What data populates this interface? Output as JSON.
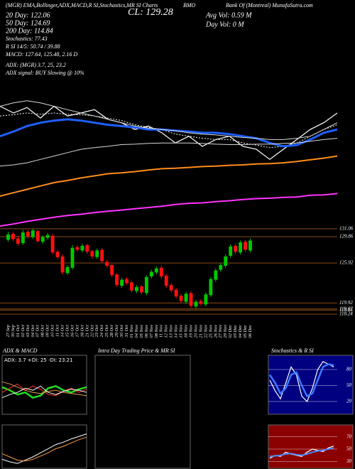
{
  "header": {
    "source": "(MGR) EMA,Bollinger,ADX,MACD,R SI,Stochastics,MR SI Charts",
    "close": "CL: 129.28",
    "symbol": "BMO",
    "company": "Bank Of (Montreal) MunafaSutra.com",
    "avg_vol": "Avg Vol: 0.59 M",
    "day_vol": "Day Vol: 0 M",
    "ema20": "20 Day: 122.06",
    "ema50": "50 Day: 124.69",
    "ema200": "200 Day: 114.84",
    "stochastics": "Stochastics: 77.43",
    "rsi": "R SI 14/5: 50.74 / 39.88",
    "macd": "MACD: 127.64, 125.48, 2.16 D",
    "adx": "ADX: (MGR) 3.7, 25, 23.2",
    "adx_signal": "ADX signal: BUY Slowing @ 10%"
  },
  "chart_data": [
    {
      "type": "candlestick",
      "categories": [
        "27 Sep",
        "30 Sep",
        "01 Oct",
        "02 Oct",
        "03 Oct",
        "04 Oct",
        "07 Oct",
        "08 Oct",
        "09 Oct",
        "10 Oct",
        "11 Oct",
        "14 Oct",
        "15 Oct",
        "16 Oct",
        "17 Oct",
        "18 Oct",
        "21 Oct",
        "22 Oct",
        "23 Oct",
        "24 Oct",
        "25 Oct",
        "28 Oct",
        "29 Oct",
        "30 Oct",
        "31 Oct",
        "01 Nov",
        "04 Nov",
        "05 Nov",
        "06 Nov",
        "07 Nov",
        "08 Nov",
        "11 Nov",
        "12 Nov",
        "13 Nov",
        "14 Nov",
        "15 Nov",
        "18 Nov",
        "19 Nov",
        "20 Nov",
        "21 Nov",
        "22 Nov",
        "25 Nov",
        "26 Nov",
        "27 Nov",
        "29 Nov",
        "02 Dec",
        "03 Dec",
        "04 Dec",
        "05 Dec",
        "06 Dec"
      ],
      "open": [
        129.4,
        130.3,
        129.6,
        128.9,
        130.6,
        129.8,
        130.7,
        129.1,
        129.7,
        130.0,
        127.6,
        126.9,
        124.4,
        125.2,
        128.3,
        127.8,
        128.6,
        127.7,
        126.8,
        127.9,
        126.1,
        125.6,
        124.2,
        122.5,
        123.5,
        123.0,
        121.7,
        122.4,
        121.4,
        123.9,
        124.5,
        125.2,
        124.0,
        122.6,
        121.9,
        121.0,
        120.1,
        121.4,
        119.4,
        120.2,
        119.7,
        121.1,
        123.4,
        124.9,
        125.5,
        127.0,
        128.5,
        127.5,
        129.1,
        127.8
      ],
      "high": [
        130.6,
        130.6,
        130.0,
        130.9,
        130.9,
        131.1,
        130.9,
        130.1,
        130.4,
        130.3,
        127.9,
        127.2,
        125.6,
        128.6,
        128.6,
        128.8,
        128.8,
        127.9,
        128.1,
        128.2,
        126.4,
        125.8,
        124.4,
        123.7,
        123.8,
        123.3,
        122.6,
        122.6,
        124.1,
        124.9,
        125.4,
        125.5,
        124.3,
        122.9,
        122.2,
        121.3,
        121.6,
        121.7,
        120.4,
        120.5,
        121.5,
        123.8,
        125.1,
        125.9,
        127.2,
        128.7,
        128.8,
        129.3,
        129.4,
        129.6
      ],
      "low": [
        129.1,
        129.2,
        128.5,
        128.6,
        129.6,
        129.5,
        129.0,
        128.8,
        129.4,
        127.2,
        126.5,
        124.2,
        124.1,
        124.9,
        127.6,
        127.5,
        127.3,
        126.6,
        126.5,
        125.9,
        125.2,
        123.8,
        122.3,
        122.2,
        122.6,
        121.5,
        121.4,
        121.2,
        121.1,
        123.6,
        124.2,
        123.6,
        122.2,
        121.5,
        120.6,
        119.9,
        119.8,
        119.2,
        119.1,
        119.5,
        119.4,
        120.8,
        123.1,
        124.6,
        125.2,
        126.7,
        127.3,
        127.2,
        127.6,
        127.5
      ],
      "close": [
        130.2,
        129.5,
        128.8,
        130.5,
        129.9,
        130.8,
        129.2,
        129.8,
        130.1,
        127.5,
        126.8,
        124.5,
        125.3,
        128.2,
        127.9,
        128.5,
        127.6,
        126.9,
        127.8,
        126.2,
        125.5,
        124.1,
        122.6,
        123.4,
        122.9,
        121.8,
        122.3,
        121.5,
        123.8,
        124.6,
        125.1,
        123.9,
        122.5,
        121.8,
        120.9,
        120.2,
        121.3,
        119.5,
        120.1,
        119.8,
        121.2,
        123.5,
        124.8,
        125.6,
        126.9,
        128.4,
        127.6,
        129.0,
        127.9,
        129.28
      ],
      "up_color": "#00c800",
      "down_color": "#ff1010",
      "grid_color": "#8a4a1a",
      "ylim": [
        117.5,
        133.5
      ],
      "yticks": [
        131.06,
        129.86,
        125.92,
        119.92,
        119.02,
        118.85,
        118.24
      ],
      "grid": true
    },
    {
      "type": "line",
      "ylim": [
        98,
        130
      ],
      "series": [
        {
          "color": "#ffffff",
          "values": [
            128.4,
            126.8,
            128.1,
            125.6,
            128.4,
            126.1,
            126.8,
            127.6,
            125.3,
            124.5,
            122.9,
            123.7,
            122.1,
            119.7,
            121.3,
            118.9,
            120.5,
            121.3,
            118.9,
            118.2,
            115.8,
            118.2,
            120.5,
            122.9,
            124.5,
            126.8
          ]
        },
        {
          "color": "#ffffff",
          "values": [
            126.1,
            126.4,
            126.8,
            126.5,
            126.8,
            126.5,
            126.4,
            126.1,
            125.6,
            125.0,
            124.0,
            123.4,
            122.9,
            121.8,
            121.3,
            120.8,
            120.5,
            120.5,
            119.7,
            119.2,
            118.6,
            118.9,
            119.7,
            121.3,
            122.9,
            124.0
          ]
        },
        {
          "color": "#1f5fff",
          "values": [
            121.3,
            122.4,
            123.7,
            124.5,
            125.0,
            125.3,
            125.0,
            124.5,
            124.0,
            123.7,
            123.4,
            122.9,
            122.9,
            122.6,
            122.4,
            122.1,
            122.1,
            121.8,
            121.3,
            120.8,
            119.7,
            118.9,
            119.2,
            120.5,
            122.1,
            122.9
          ]
        },
        {
          "color": "#d8d8d8",
          "values": [
            128.4,
            129.2,
            129.7,
            129.2,
            128.4,
            127.6,
            126.8,
            126.1,
            125.3,
            124.5,
            123.7,
            123.2,
            122.9,
            122.6,
            122.1,
            121.8,
            121.6,
            121.3,
            121.0,
            120.8,
            120.5,
            120.5,
            120.8,
            121.3,
            122.9,
            124.5
          ]
        },
        {
          "color": "#d8d8d8",
          "values": [
            114.2,
            114.5,
            115.0,
            115.8,
            116.6,
            117.4,
            118.2,
            118.6,
            118.9,
            119.3,
            119.4,
            119.6,
            119.7,
            119.7,
            119.7,
            119.6,
            119.4,
            119.3,
            119.3,
            119.4,
            119.4,
            119.6,
            119.7,
            120.1,
            120.5,
            120.8
          ]
        },
        {
          "color": "#ff8c1a",
          "values": [
            107.1,
            107.9,
            108.7,
            109.5,
            110.3,
            110.8,
            111.4,
            111.9,
            112.4,
            112.6,
            112.9,
            113.3,
            113.6,
            113.7,
            113.9,
            114.1,
            114.2,
            114.4,
            114.5,
            114.7,
            114.8,
            115.0,
            115.3,
            115.7,
            116.1,
            116.6
          ]
        },
        {
          "color": "#ff33ff",
          "values": [
            100.0,
            100.5,
            101.1,
            101.6,
            102.1,
            102.5,
            102.8,
            103.2,
            103.5,
            103.8,
            104.1,
            104.4,
            104.7,
            105.1,
            105.4,
            105.5,
            105.8,
            106.0,
            106.3,
            106.5,
            106.6,
            106.8,
            106.9,
            107.3,
            107.4,
            107.7
          ]
        }
      ]
    },
    {
      "type": "line",
      "title": "ADX & MACD",
      "subtitle": "ADX: 3.7 +DI: 25 -DI: 23.21",
      "ylim": [
        0,
        45
      ],
      "series": [
        {
          "color": "#22dd22",
          "values": [
            25,
            22,
            18,
            20,
            15,
            17,
            24,
            26,
            22,
            20,
            23,
            25
          ]
        },
        {
          "color": "#ff3030",
          "values": [
            20,
            24,
            28,
            22,
            26,
            23,
            18,
            17,
            21,
            24,
            20,
            23
          ]
        },
        {
          "color": "#e0a050",
          "values": [
            30,
            28,
            25,
            22,
            20,
            19,
            21,
            22,
            20,
            19,
            18,
            17
          ]
        },
        {
          "color": "#ffffff",
          "values": [
            15,
            18,
            20,
            24,
            22,
            26,
            20,
            18,
            21,
            23,
            22,
            20
          ]
        }
      ]
    },
    {
      "type": "line",
      "ylim": [
        -1.5,
        3
      ],
      "series": [
        {
          "color": "#ffffff",
          "values": [
            -0.5,
            -0.8,
            -1.0,
            -0.6,
            -0.2,
            0.3,
            0.8,
            1.3,
            1.6,
            2.0,
            2.3,
            2.6
          ]
        },
        {
          "color": "#ff9a3a",
          "values": [
            0.2,
            -0.2,
            -0.6,
            -0.7,
            -0.5,
            -0.1,
            0.3,
            0.8,
            1.1,
            1.5,
            1.9,
            2.2
          ]
        }
      ]
    },
    {
      "type": "line",
      "title": "Intra Day Trading Price & MR SI",
      "series": []
    },
    {
      "type": "line",
      "title": "Stochastics & R SI",
      "ylim": [
        0,
        100
      ],
      "yticks": [
        20,
        50,
        80
      ],
      "grid": true,
      "series": [
        {
          "color": "#ffffff",
          "values": [
            60,
            40,
            25,
            55,
            85,
            70,
            30,
            20,
            45,
            80,
            95,
            90,
            85
          ]
        },
        {
          "color": "#3a78ff",
          "values": [
            70,
            55,
            35,
            45,
            70,
            75,
            50,
            30,
            35,
            60,
            85,
            90,
            88
          ]
        }
      ]
    },
    {
      "type": "line",
      "ylim": [
        20,
        80
      ],
      "yticks": [
        30,
        50,
        70
      ],
      "grid": true,
      "series": [
        {
          "color": "#ffffff",
          "values": [
            35,
            40,
            38,
            45,
            42,
            40,
            38,
            45,
            50,
            48,
            46,
            52,
            55
          ]
        },
        {
          "color": "#4a86ff",
          "values": [
            38,
            39,
            40,
            42,
            43,
            41,
            40,
            42,
            45,
            47,
            48,
            50,
            52
          ]
        }
      ]
    }
  ]
}
